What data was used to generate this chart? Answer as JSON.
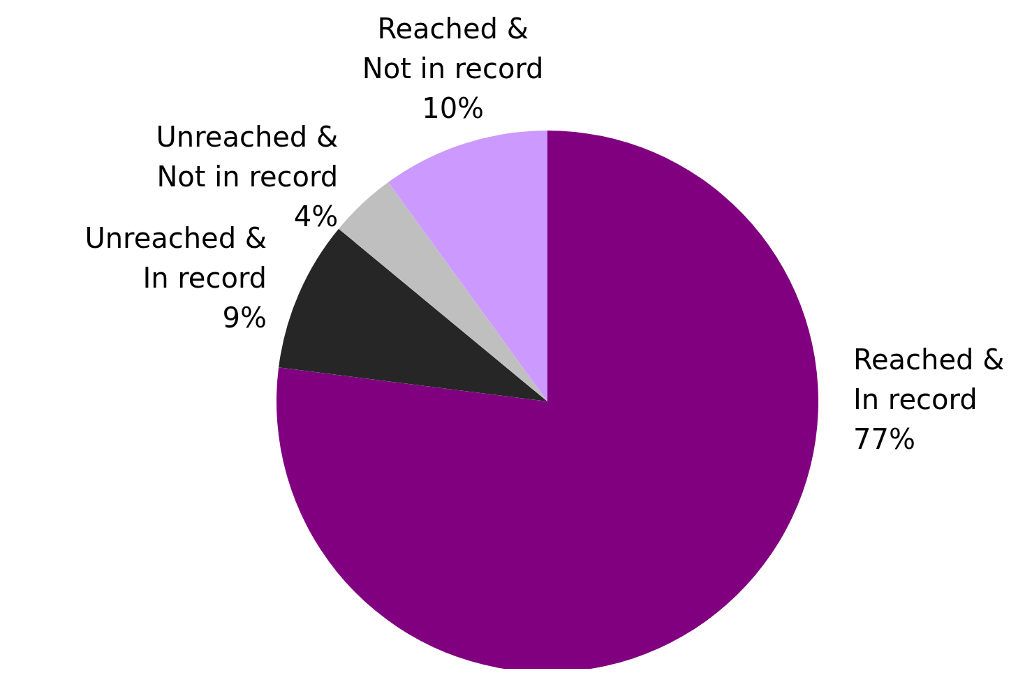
{
  "chart_data": {
    "type": "pie",
    "categories": [
      "Reached & In record",
      "Unreached & In record",
      "Unreached & Not in record",
      "Reached & Not in record"
    ],
    "values": [
      77,
      9,
      4,
      10
    ],
    "colors": [
      "#800080",
      "#262626",
      "#bfbfbf",
      "#cc99ff"
    ],
    "value_labels": [
      "77%",
      "9%",
      "4%",
      "10%"
    ]
  }
}
